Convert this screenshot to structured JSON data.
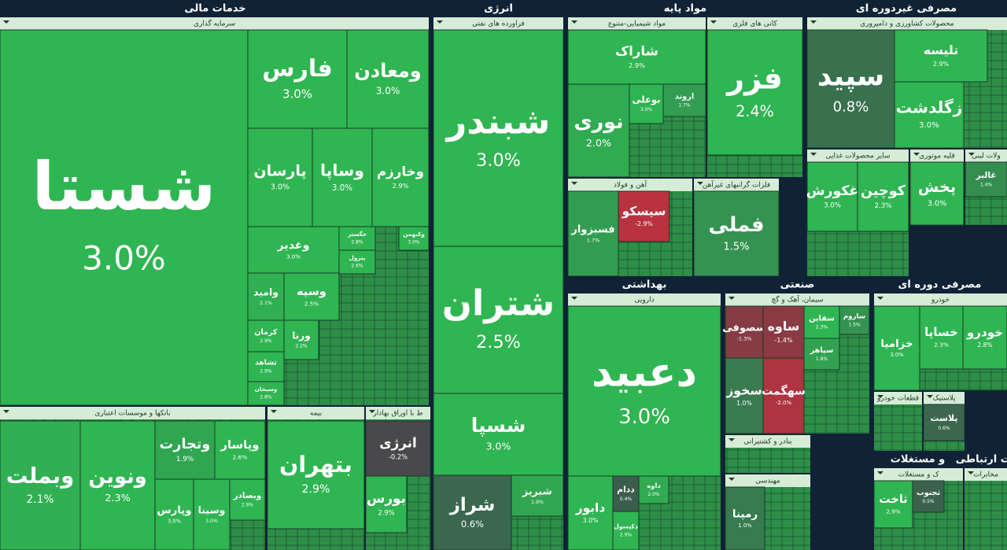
{
  "chart_data": {
    "type": "treemap",
    "sectors": [
      {
        "name": "خدمات مالی",
        "groups": [
          {
            "name": "سرمایه گذاری",
            "categories": [
              "شستا",
              "فارس",
              "ومعادن",
              "پارسان",
              "وساپا",
              "وخارزم",
              "وغدیر",
              "وامید",
              "وسپه",
              "کرمان",
              "ثشاهد",
              "وسبحان",
              "ورنا",
              "خگستر",
              "وکبهمن",
              "پترول"
            ],
            "values": [
              3.0,
              3.0,
              3.0,
              3.0,
              3.0,
              2.9,
              3.0,
              2.1,
              2.5,
              2.9,
              2.9,
              2.8,
              2.2,
              2.8,
              3.0,
              2.6
            ],
            "value_labels": [
              "3.0%",
              "3.0%",
              "3.0%",
              "3.0%",
              "3.0%",
              "2.9%",
              "3.0%",
              "2.1%",
              "2.5%",
              "2.9%",
              "2.9%",
              "2.8%",
              "2.2%",
              "2.8%",
              "3.0%",
              "2.6%"
            ]
          },
          {
            "name": "بانکها و موسسات اعتباری",
            "categories": [
              "وبملت",
              "ونوین",
              "وتجارت",
              "وپاسار",
              "وپارس",
              "وسینا",
              "وبصادر"
            ],
            "values": [
              2.1,
              2.3,
              1.9,
              2.6,
              3.0,
              3.0,
              2.9
            ],
            "value_labels": [
              "2.1%",
              "2.3%",
              "1.9%",
              "2.6%",
              "3.0%",
              "3.0%",
              "2.9%"
            ]
          },
          {
            "name": "بیمه",
            "categories": [
              "بتهران"
            ],
            "values": [
              2.9
            ],
            "value_labels": [
              "2.9%"
            ]
          },
          {
            "name": "ط با اوراق بهادار",
            "categories": [
              "انرژی",
              "بورس"
            ],
            "values": [
              -0.2,
              2.9
            ],
            "value_labels": [
              "-0.2%",
              "2.9%"
            ]
          }
        ]
      },
      {
        "name": "انرژی",
        "groups": [
          {
            "name": "فراورده های نفتی",
            "categories": [
              "شبندر",
              "شتران",
              "شسپا",
              "شراز",
              "شبریز"
            ],
            "values": [
              3.0,
              2.5,
              3.0,
              0.6,
              1.9
            ],
            "value_labels": [
              "3.0%",
              "2.5%",
              "3.0%",
              "0.6%",
              "1.9%"
            ]
          }
        ]
      },
      {
        "name": "مواد پایه",
        "groups": [
          {
            "name": "مواد شیمیایی-متنوع",
            "categories": [
              "شاراک",
              "نوری",
              "بوعلی",
              "اروند"
            ],
            "values": [
              2.9,
              2.0,
              3.0,
              1.7
            ],
            "value_labels": [
              "2.9%",
              "2.0%",
              "3.0%",
              "1.7%"
            ]
          },
          {
            "name": "کانی های فلزی",
            "categories": [
              "فزر"
            ],
            "values": [
              2.4
            ],
            "value_labels": [
              "2.4%"
            ]
          },
          {
            "name": "آهن و فولاد",
            "categories": [
              "فسبزوار",
              "سیسکو"
            ],
            "values": [
              1.7,
              -2.9
            ],
            "value_labels": [
              "1.7%",
              "-2.9%"
            ]
          },
          {
            "name": "فلزات گرانبهای غیرآهن",
            "categories": [
              "فملی"
            ],
            "values": [
              1.5
            ],
            "value_labels": [
              "1.5%"
            ]
          }
        ]
      },
      {
        "name": "مصرفی غیردوره ای",
        "groups": [
          {
            "name": "محصولات کشاورزی و دامپروری",
            "categories": [
              "سپید",
              "تلیسه",
              "زگلدشت"
            ],
            "values": [
              0.8,
              2.9,
              3.0
            ],
            "value_labels": [
              "0.8%",
              "2.9%",
              "3.0%"
            ]
          },
          {
            "name": "سایر محصولات غذایی",
            "categories": [
              "غکورش",
              "کوچین"
            ],
            "values": [
              3.0,
              2.3
            ],
            "value_labels": [
              "3.0%",
              "2.3%"
            ]
          },
          {
            "name": "قلیه موتوری",
            "categories": [
              "پخش"
            ],
            "values": [
              3.0
            ],
            "value_labels": [
              "3.0%"
            ]
          },
          {
            "name": "ولات لبنی",
            "categories": [
              "غالبر"
            ],
            "values": [
              1.4
            ],
            "value_labels": [
              "1.4%"
            ]
          }
        ]
      },
      {
        "name": "بهداشتی",
        "groups": [
          {
            "name": "دارویی",
            "categories": [
              "دعبید",
              "دابور",
              "ددام",
              "دکپسول",
              "داوه"
            ],
            "values": [
              3.0,
              3.0,
              0.4,
              2.9,
              2.0
            ],
            "value_labels": [
              "3.0%",
              "3.0%",
              "0.4%",
              "2.9%",
              "2.0%"
            ]
          }
        ]
      },
      {
        "name": "صنعتی",
        "groups": [
          {
            "name": "سیمان، آهک و گچ",
            "categories": [
              "سصوفی",
              "ساوه",
              "سخوز",
              "سهگمت",
              "سقاین",
              "ساروم",
              "سپاهر"
            ],
            "values": [
              -1.3,
              -1.4,
              1.0,
              -2.0,
              2.3,
              1.5,
              1.8
            ],
            "value_labels": [
              "-1.3%",
              "-1.4%",
              "1.0%",
              "-2.0%",
              "2.3%",
              "1.5%",
              "1.8%"
            ]
          },
          {
            "name": "بنادر و کشتیرانی",
            "categories": [],
            "values": [],
            "value_labels": []
          },
          {
            "name": "مهندسی",
            "categories": [
              "رمپنا"
            ],
            "values": [
              1.0
            ],
            "value_labels": [
              "1.0%"
            ]
          }
        ]
      },
      {
        "name": "مصرفی دوره ای",
        "groups": [
          {
            "name": "خودرو",
            "categories": [
              "خزامیا",
              "خساپا",
              "خودرو"
            ],
            "values": [
              3.0,
              2.3,
              2.8
            ],
            "value_labels": [
              "3.0%",
              "2.3%",
              "2.8%"
            ]
          },
          {
            "name": "قطعات خودرو",
            "categories": [],
            "values": [],
            "value_labels": []
          },
          {
            "name": "پلاستیک",
            "categories": [
              "پلاست"
            ],
            "values": [
              0.6
            ],
            "value_labels": [
              "0.6%"
            ]
          }
        ]
      },
      {
        "name": "و مستغلات",
        "groups": [
          {
            "name": "ک و مستغلات",
            "categories": [
              "ثاخت",
              "ثجنوب"
            ],
            "values": [
              2.9,
              0.5
            ],
            "value_labels": [
              "2.9%",
              "0.5%"
            ]
          }
        ]
      },
      {
        "name": "ات ارتباطی",
        "groups": [
          {
            "name": "مخابرات",
            "categories": [],
            "values": [],
            "value_labels": []
          }
        ]
      }
    ]
  }
}
